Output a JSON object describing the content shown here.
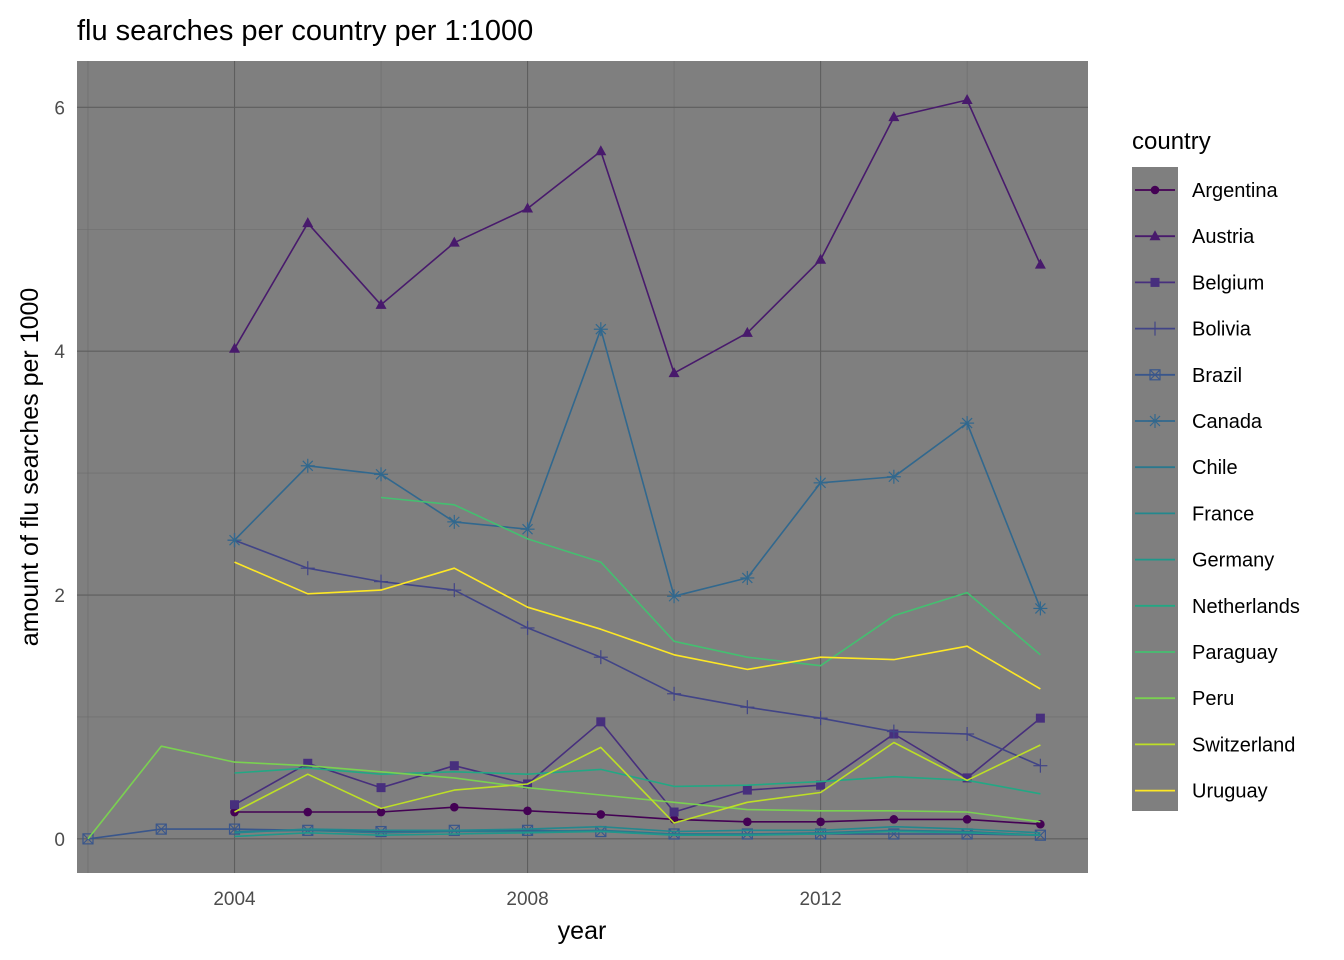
{
  "chart_data": {
    "type": "line",
    "title": "flu searches per country per 1:1000",
    "xlabel": "year",
    "ylabel": "amount of flu searches per 1000",
    "legend_title": "country",
    "legend_position": "right",
    "xlim": [
      2001.85,
      2015.65
    ],
    "ylim": [
      -0.28,
      6.38
    ],
    "x_ticks": [
      2004,
      2008,
      2012
    ],
    "x_tick_labels": [
      "2004",
      "2008",
      "2012"
    ],
    "y_ticks": [
      0,
      2,
      4,
      6
    ],
    "y_tick_labels": [
      "0",
      "2",
      "4",
      "6"
    ],
    "grid": true,
    "panel_background": "#7f7f7f",
    "series": [
      {
        "name": "Argentina",
        "color": "#440154",
        "marker": "circle",
        "x": [
          2004,
          2005,
          2006,
          2007,
          2008,
          2009,
          2010,
          2011,
          2012,
          2013,
          2014,
          2015
        ],
        "y": [
          0.22,
          0.22,
          0.22,
          0.26,
          0.23,
          0.2,
          0.16,
          0.14,
          0.14,
          0.16,
          0.16,
          0.12
        ]
      },
      {
        "name": "Austria",
        "color": "#481a6c",
        "marker": "triangle",
        "x": [
          2004,
          2005,
          2006,
          2007,
          2008,
          2009,
          2010,
          2011,
          2012,
          2013,
          2014,
          2015
        ],
        "y": [
          4.02,
          5.05,
          4.38,
          4.89,
          5.17,
          5.64,
          3.82,
          4.15,
          4.75,
          5.92,
          6.06,
          4.71
        ]
      },
      {
        "name": "Belgium",
        "color": "#472f7d",
        "marker": "square",
        "x": [
          2004,
          2005,
          2006,
          2007,
          2008,
          2009,
          2010,
          2011,
          2012,
          2013,
          2014,
          2015
        ],
        "y": [
          0.28,
          0.62,
          0.42,
          0.6,
          0.45,
          0.96,
          0.22,
          0.4,
          0.44,
          0.86,
          0.5,
          0.99
        ]
      },
      {
        "name": "Bolivia",
        "color": "#414487",
        "marker": "plus",
        "x": [
          2004,
          2005,
          2006,
          2007,
          2008,
          2009,
          2010,
          2011,
          2012,
          2013,
          2014,
          2015
        ],
        "y": [
          2.45,
          2.22,
          2.11,
          2.04,
          1.73,
          1.49,
          1.19,
          1.08,
          0.99,
          0.88,
          0.86,
          0.6
        ]
      },
      {
        "name": "Brazil",
        "color": "#39568c",
        "marker": "square-x",
        "x": [
          2002,
          2003,
          2004,
          2005,
          2006,
          2007,
          2008,
          2009,
          2010,
          2011,
          2012,
          2013,
          2014,
          2015
        ],
        "y": [
          0.0,
          0.08,
          0.08,
          0.07,
          0.06,
          0.07,
          0.07,
          0.06,
          0.04,
          0.04,
          0.04,
          0.04,
          0.04,
          0.03
        ]
      },
      {
        "name": "Canada",
        "color": "#31688e",
        "marker": "asterisk",
        "x": [
          2004,
          2005,
          2006,
          2007,
          2008,
          2009,
          2010,
          2011,
          2012,
          2013,
          2014,
          2015
        ],
        "y": [
          2.45,
          3.06,
          2.99,
          2.6,
          2.54,
          4.18,
          1.99,
          2.14,
          2.92,
          2.97,
          3.41,
          1.89
        ]
      },
      {
        "name": "Chile",
        "color": "#2a788e",
        "marker": "none",
        "x": [
          2004,
          2005,
          2006,
          2007,
          2008,
          2009,
          2010,
          2011,
          2012,
          2013,
          2014,
          2015
        ],
        "y": [
          0.06,
          0.07,
          0.05,
          0.06,
          0.06,
          0.07,
          0.04,
          0.04,
          0.05,
          0.07,
          0.06,
          0.03
        ]
      },
      {
        "name": "France",
        "color": "#23888e",
        "marker": "none",
        "x": [
          2004,
          2005,
          2006,
          2007,
          2008,
          2009,
          2010,
          2011,
          2012,
          2013,
          2014,
          2015
        ],
        "y": [
          0.05,
          0.08,
          0.07,
          0.07,
          0.08,
          0.1,
          0.06,
          0.07,
          0.07,
          0.1,
          0.08,
          0.05
        ]
      },
      {
        "name": "Germany",
        "color": "#1f988b",
        "marker": "none",
        "x": [
          2004,
          2005,
          2006,
          2007,
          2008,
          2009,
          2010,
          2011,
          2012,
          2013,
          2014,
          2015
        ],
        "y": [
          0.02,
          0.05,
          0.03,
          0.04,
          0.05,
          0.06,
          0.03,
          0.03,
          0.04,
          0.06,
          0.05,
          0.03
        ]
      },
      {
        "name": "Netherlands",
        "color": "#22a884",
        "marker": "none",
        "x": [
          2004,
          2005,
          2006,
          2007,
          2008,
          2009,
          2010,
          2011,
          2012,
          2013,
          2014,
          2015
        ],
        "y": [
          0.54,
          0.58,
          0.53,
          0.55,
          0.53,
          0.57,
          0.43,
          0.44,
          0.47,
          0.51,
          0.48,
          0.37
        ]
      },
      {
        "name": "Paraguay",
        "color": "#44bf70",
        "marker": "none",
        "x": [
          2006,
          2007,
          2008,
          2009,
          2010,
          2011,
          2012,
          2013,
          2014,
          2015
        ],
        "y": [
          2.8,
          2.74,
          2.46,
          2.27,
          1.62,
          1.49,
          1.42,
          1.83,
          2.02,
          1.51
        ]
      },
      {
        "name": "Peru",
        "color": "#7ad151",
        "marker": "none",
        "x": [
          2002,
          2003,
          2004,
          2005,
          2006,
          2007,
          2008,
          2009,
          2010,
          2011,
          2012,
          2013,
          2014,
          2015
        ],
        "y": [
          0.0,
          0.76,
          0.63,
          0.6,
          0.55,
          0.5,
          0.42,
          0.36,
          0.3,
          0.24,
          0.23,
          0.23,
          0.22,
          0.14
        ]
      },
      {
        "name": "Switzerland",
        "color": "#bddf26",
        "marker": "none",
        "x": [
          2004,
          2005,
          2006,
          2007,
          2008,
          2009,
          2010,
          2011,
          2012,
          2013,
          2014,
          2015
        ],
        "y": [
          0.22,
          0.53,
          0.25,
          0.4,
          0.45,
          0.75,
          0.13,
          0.3,
          0.38,
          0.79,
          0.48,
          0.77
        ]
      },
      {
        "name": "Uruguay",
        "color": "#fde725",
        "marker": "none",
        "x": [
          2004,
          2005,
          2006,
          2007,
          2008,
          2009,
          2010,
          2011,
          2012,
          2013,
          2014,
          2015
        ],
        "y": [
          2.27,
          2.01,
          2.04,
          2.22,
          1.9,
          1.72,
          1.51,
          1.39,
          1.49,
          1.47,
          1.58,
          1.23
        ]
      }
    ]
  }
}
